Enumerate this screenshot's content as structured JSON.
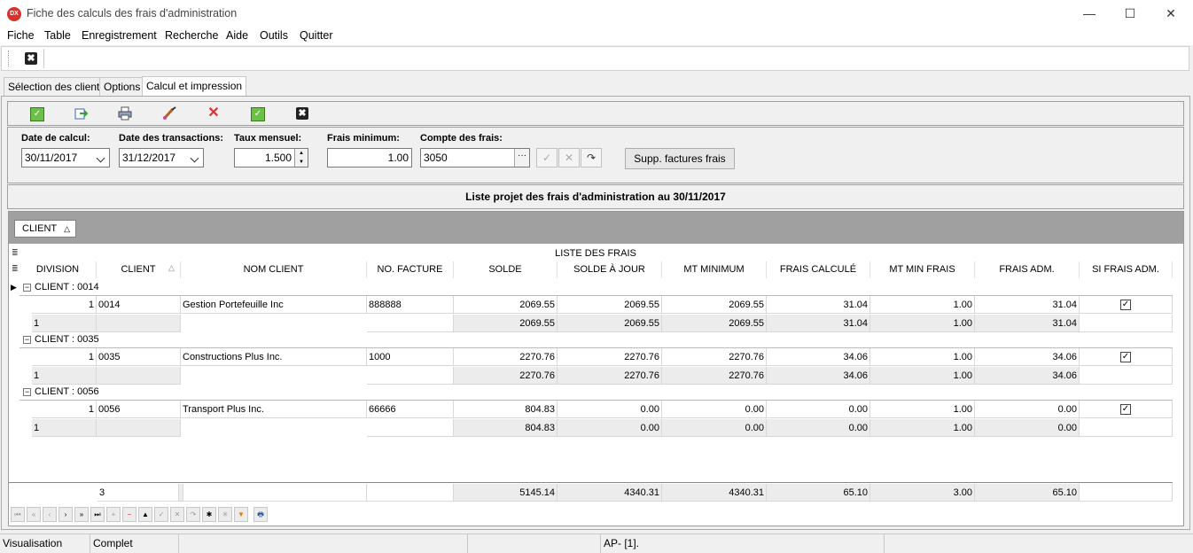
{
  "window": {
    "title": "Fiche des calculs des frais d'administration",
    "icon_text": "DX",
    "minimize": "—",
    "maximize": "☐",
    "close": "✕"
  },
  "menu": [
    "Fiche",
    "Table",
    "Enregistrement",
    "Recherche",
    "Aide",
    "Outils",
    "Quitter"
  ],
  "toolbar": {
    "close_glyph": "✖"
  },
  "tabs": [
    {
      "label": "Sélection des clients",
      "active": false
    },
    {
      "label": "Options",
      "active": false
    },
    {
      "label": "Calcul et impression",
      "active": true
    }
  ],
  "actions": {
    "icons": [
      "validate-icon",
      "export-icon",
      "print-icon",
      "edit-brush-icon",
      "delete-icon",
      "confirm-icon",
      "close-icon"
    ]
  },
  "form": {
    "date_calcul_label": "Date de calcul:",
    "date_calcul": "30/11/2017",
    "date_trans_label": "Date des transactions:",
    "date_trans": "31/12/2017",
    "taux_label": "Taux mensuel:",
    "taux": "1.500",
    "frais_min_label": "Frais  minimum:",
    "frais_min": "1.00",
    "compte_label": "Compte des frais:",
    "compte": "3050",
    "supp_button": "Supp. factures frais"
  },
  "list_title": "Liste projet des frais d'administration au 30/11/2017",
  "grid": {
    "group_chip": "CLIENT",
    "band_title": "LISTE DES FRAIS",
    "columns": [
      "DIVISION",
      "CLIENT",
      "NOM CLIENT",
      "NO. FACTURE",
      "SOLDE",
      "SOLDE À JOUR",
      "MT MINIMUM",
      "FRAIS CALCULÉ",
      "MT MIN FRAIS",
      "FRAIS ADM.",
      "SI FRAIS ADM."
    ],
    "groups": [
      {
        "header": "CLIENT : 0014",
        "row": {
          "division": "1",
          "client": "0014",
          "nom": "Gestion Portefeuille Inc",
          "facture": "888888",
          "solde": "2069.55",
          "solde_jour": "2069.55",
          "mt_min": "2069.55",
          "frais_calc": "31.04",
          "mt_min_frais": "1.00",
          "frais_adm": "31.04",
          "si_frais": true
        },
        "summary": {
          "count": "1",
          "solde": "2069.55",
          "solde_jour": "2069.55",
          "mt_min": "2069.55",
          "frais_calc": "31.04",
          "mt_min_frais": "1.00",
          "frais_adm": "31.04"
        }
      },
      {
        "header": "CLIENT : 0035",
        "row": {
          "division": "1",
          "client": "0035",
          "nom": "Constructions Plus  Inc.",
          "facture": "1000",
          "solde": "2270.76",
          "solde_jour": "2270.76",
          "mt_min": "2270.76",
          "frais_calc": "34.06",
          "mt_min_frais": "1.00",
          "frais_adm": "34.06",
          "si_frais": true
        },
        "summary": {
          "count": "1",
          "solde": "2270.76",
          "solde_jour": "2270.76",
          "mt_min": "2270.76",
          "frais_calc": "34.06",
          "mt_min_frais": "1.00",
          "frais_adm": "34.06"
        }
      },
      {
        "header": "CLIENT : 0056",
        "row": {
          "division": "1",
          "client": "0056",
          "nom": "Transport Plus Inc.",
          "facture": "66666",
          "solde": "804.83",
          "solde_jour": "0.00",
          "mt_min": "0.00",
          "frais_calc": "0.00",
          "mt_min_frais": "1.00",
          "frais_adm": "0.00",
          "si_frais": true
        },
        "summary": {
          "count": "1",
          "solde": "804.83",
          "solde_jour": "0.00",
          "mt_min": "0.00",
          "frais_calc": "0.00",
          "mt_min_frais": "1.00",
          "frais_adm": "0.00"
        }
      }
    ],
    "footer": {
      "count": "3",
      "solde": "5145.14",
      "solde_jour": "4340.31",
      "mt_min": "4340.31",
      "frais_calc": "65.10",
      "mt_min_frais": "3.00",
      "frais_adm": "65.10"
    }
  },
  "navigator": [
    "⏮",
    "«",
    "‹",
    "›",
    "»",
    "⏭",
    "+",
    "−",
    "▲",
    "✓",
    "✕",
    "↷",
    "✱",
    "✳",
    "▼",
    "🖶"
  ],
  "status": {
    "mode": "Visualisation",
    "state": "Complet",
    "info": "AP- [1]."
  }
}
